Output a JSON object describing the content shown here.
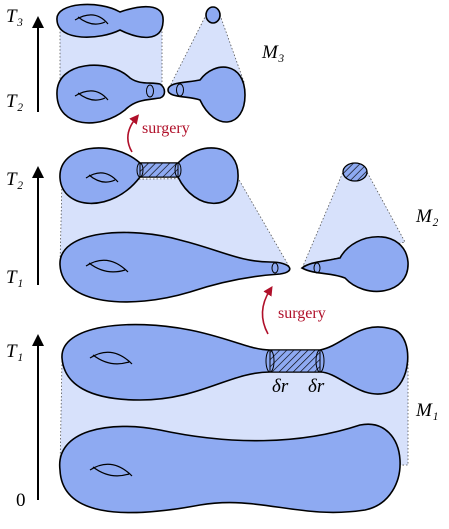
{
  "panels": [
    {
      "name": "M₃",
      "time_labels": [
        "T₃",
        "T₂"
      ]
    },
    {
      "name": "M₂",
      "time_labels": [
        "T₂",
        "T₁"
      ]
    },
    {
      "name": "M₁",
      "time_labels": [
        "T₁",
        "0"
      ]
    }
  ],
  "surgery_labels": [
    "surgery",
    "surgery"
  ],
  "neck_labels": [
    "δr",
    "δr"
  ]
}
